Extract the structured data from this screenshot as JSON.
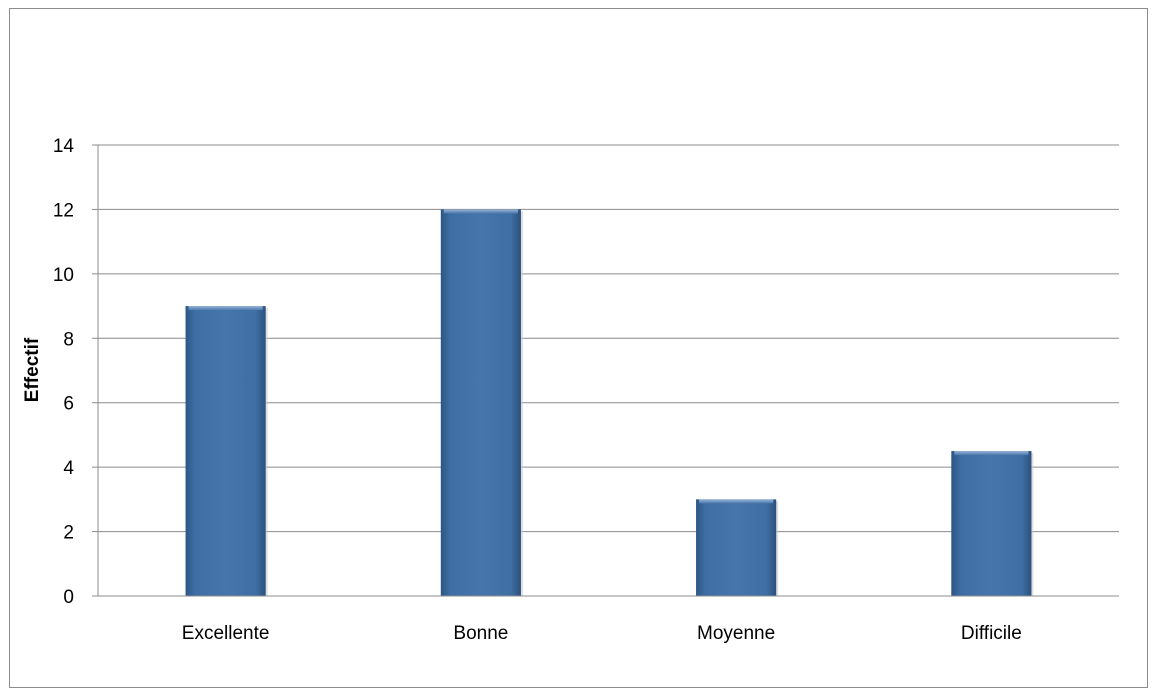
{
  "chart_data": {
    "type": "bar",
    "title": "",
    "xlabel": "",
    "ylabel": "Effectif",
    "categories": [
      "Excellente",
      "Bonne",
      "Moyenne",
      "Difficile"
    ],
    "values": [
      9,
      12,
      3,
      4.5
    ],
    "ylim": [
      0,
      14
    ],
    "yticks": [
      0,
      2,
      4,
      6,
      8,
      10,
      12,
      14
    ],
    "grid": true,
    "legend": "none",
    "bar_color": "#3e6fa4"
  }
}
